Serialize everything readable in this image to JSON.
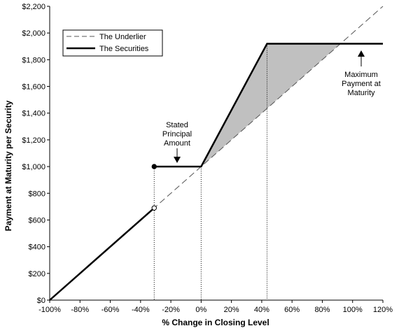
{
  "chart_data": {
    "type": "line",
    "title": "",
    "xlabel": "% Change in Closing Level",
    "ylabel": "Payment at Maturity per Security",
    "xlim": [
      -100,
      120
    ],
    "ylim": [
      0,
      2200
    ],
    "x_ticks": [
      -100,
      -80,
      -60,
      -40,
      -20,
      0,
      20,
      40,
      60,
      80,
      100,
      120
    ],
    "x_tick_labels": [
      "-100%",
      "-80%",
      "-60%",
      "-40%",
      "-20%",
      "0%",
      "20%",
      "40%",
      "60%",
      "80%",
      "100%",
      "120%"
    ],
    "y_ticks": [
      0,
      200,
      400,
      600,
      800,
      1000,
      1200,
      1400,
      1600,
      1800,
      2000,
      2200
    ],
    "y_tick_labels": [
      "$0",
      "$200",
      "$400",
      "$600",
      "$800",
      "$1,000",
      "$1,200",
      "$1,400",
      "$1,600",
      "$1,800",
      "$2,000",
      "$2,200"
    ],
    "grid": false,
    "legend_position": "top-left",
    "series": [
      {
        "name": "The Underlier",
        "style": "dashed",
        "color": "#555555",
        "x": [
          -100,
          120
        ],
        "y": [
          0,
          2200
        ]
      },
      {
        "name": "The Securities",
        "style": "solid",
        "color": "#000000",
        "segments": [
          {
            "x": [
              -100,
              -31
            ],
            "y": [
              0,
              690
            ]
          },
          {
            "x": [
              -31,
              0,
              43.5,
              120
            ],
            "y": [
              1000,
              1000,
              1920,
              1920
            ]
          }
        ]
      }
    ],
    "markers": [
      {
        "x": -31,
        "y": 1000,
        "fill": "filled"
      },
      {
        "x": -31,
        "y": 690,
        "fill": "open"
      }
    ],
    "reference_lines": [
      {
        "x": -31,
        "y_top": 1000
      },
      {
        "x": 0,
        "y_top": 1000
      },
      {
        "x": 43.5,
        "y_top": 1920
      }
    ],
    "shaded_region": {
      "color": "#c0c0c0",
      "x": [
        0,
        43.5,
        92
      ],
      "y": [
        1000,
        1920,
        1920
      ]
    },
    "annotations": [
      {
        "lines": [
          "Stated",
          "Principal",
          "Amount"
        ],
        "arrow_to": {
          "x": -17,
          "y": 1010
        }
      },
      {
        "lines": [
          "Maximum",
          "Payment at",
          "Maturity"
        ],
        "arrow_to": {
          "x": 104,
          "y": 1930
        }
      }
    ]
  }
}
